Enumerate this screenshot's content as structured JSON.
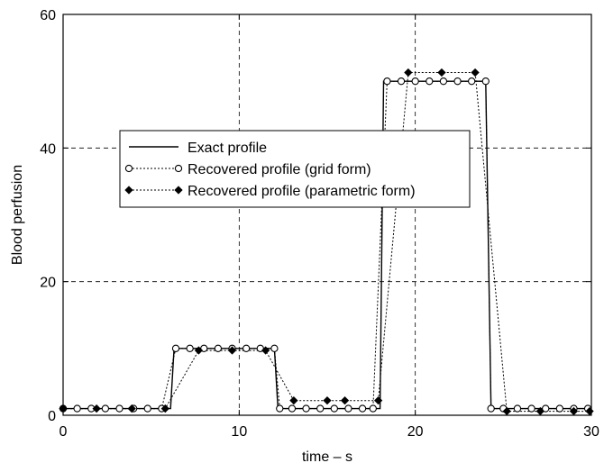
{
  "chart_data": {
    "type": "line",
    "title": "",
    "xlabel": "time – s",
    "ylabel": "Blood perfusion",
    "xlim": [
      0,
      30
    ],
    "ylim": [
      0,
      60
    ],
    "xticks": [
      0,
      10,
      20,
      30
    ],
    "yticks": [
      0,
      20,
      40,
      60
    ],
    "grid": true,
    "legend_position": "upper-left-center",
    "series": [
      {
        "name": "Exact profile",
        "style": "solid line",
        "color": "#000000",
        "points": [
          [
            0,
            1
          ],
          [
            6.1,
            1
          ],
          [
            6.3,
            10
          ],
          [
            12,
            10
          ],
          [
            12.2,
            1
          ],
          [
            18,
            1
          ],
          [
            18.2,
            50
          ],
          [
            24,
            50
          ],
          [
            24.3,
            1
          ],
          [
            30,
            1
          ]
        ]
      },
      {
        "name": "Recovered profile (grid form)",
        "style": "dotted line with open circles",
        "color": "#000000",
        "points": [
          [
            0,
            1
          ],
          [
            0.8,
            1
          ],
          [
            1.6,
            1
          ],
          [
            2.4,
            1
          ],
          [
            3.2,
            1
          ],
          [
            4.0,
            1
          ],
          [
            4.8,
            1
          ],
          [
            5.6,
            1
          ],
          [
            6.4,
            10
          ],
          [
            7.2,
            10
          ],
          [
            8.0,
            10
          ],
          [
            8.8,
            10
          ],
          [
            9.6,
            10
          ],
          [
            10.4,
            10
          ],
          [
            11.2,
            10
          ],
          [
            12.0,
            10
          ],
          [
            12.3,
            1
          ],
          [
            13.0,
            1
          ],
          [
            13.8,
            1
          ],
          [
            14.6,
            1
          ],
          [
            15.4,
            1
          ],
          [
            16.2,
            1
          ],
          [
            17.0,
            1
          ],
          [
            17.6,
            1
          ],
          [
            18.4,
            50
          ],
          [
            19.2,
            50
          ],
          [
            20.0,
            50
          ],
          [
            20.8,
            50
          ],
          [
            21.6,
            50
          ],
          [
            22.4,
            50
          ],
          [
            23.2,
            50
          ],
          [
            24.0,
            50
          ],
          [
            24.3,
            1
          ],
          [
            25.0,
            1
          ],
          [
            25.8,
            1
          ],
          [
            26.6,
            1
          ],
          [
            27.4,
            1
          ],
          [
            28.2,
            1
          ],
          [
            29.0,
            1
          ],
          [
            29.8,
            1
          ]
        ]
      },
      {
        "name": "Recovered profile (parametric form)",
        "style": "dotted line with filled diamonds",
        "color": "#000000",
        "points": [
          [
            0,
            1
          ],
          [
            1.9,
            1
          ],
          [
            3.9,
            1
          ],
          [
            5.8,
            1
          ],
          [
            7.7,
            9.7
          ],
          [
            9.6,
            9.7
          ],
          [
            11.5,
            9.7
          ],
          [
            13.1,
            2.2
          ],
          [
            15.0,
            2.2
          ],
          [
            16.0,
            2.2
          ],
          [
            17.9,
            2.2
          ],
          [
            19.6,
            51.3
          ],
          [
            21.5,
            51.3
          ],
          [
            23.4,
            51.3
          ],
          [
            25.2,
            0.6
          ],
          [
            27.1,
            0.6
          ],
          [
            29.0,
            0.6
          ],
          [
            29.9,
            0.6
          ]
        ]
      }
    ]
  }
}
